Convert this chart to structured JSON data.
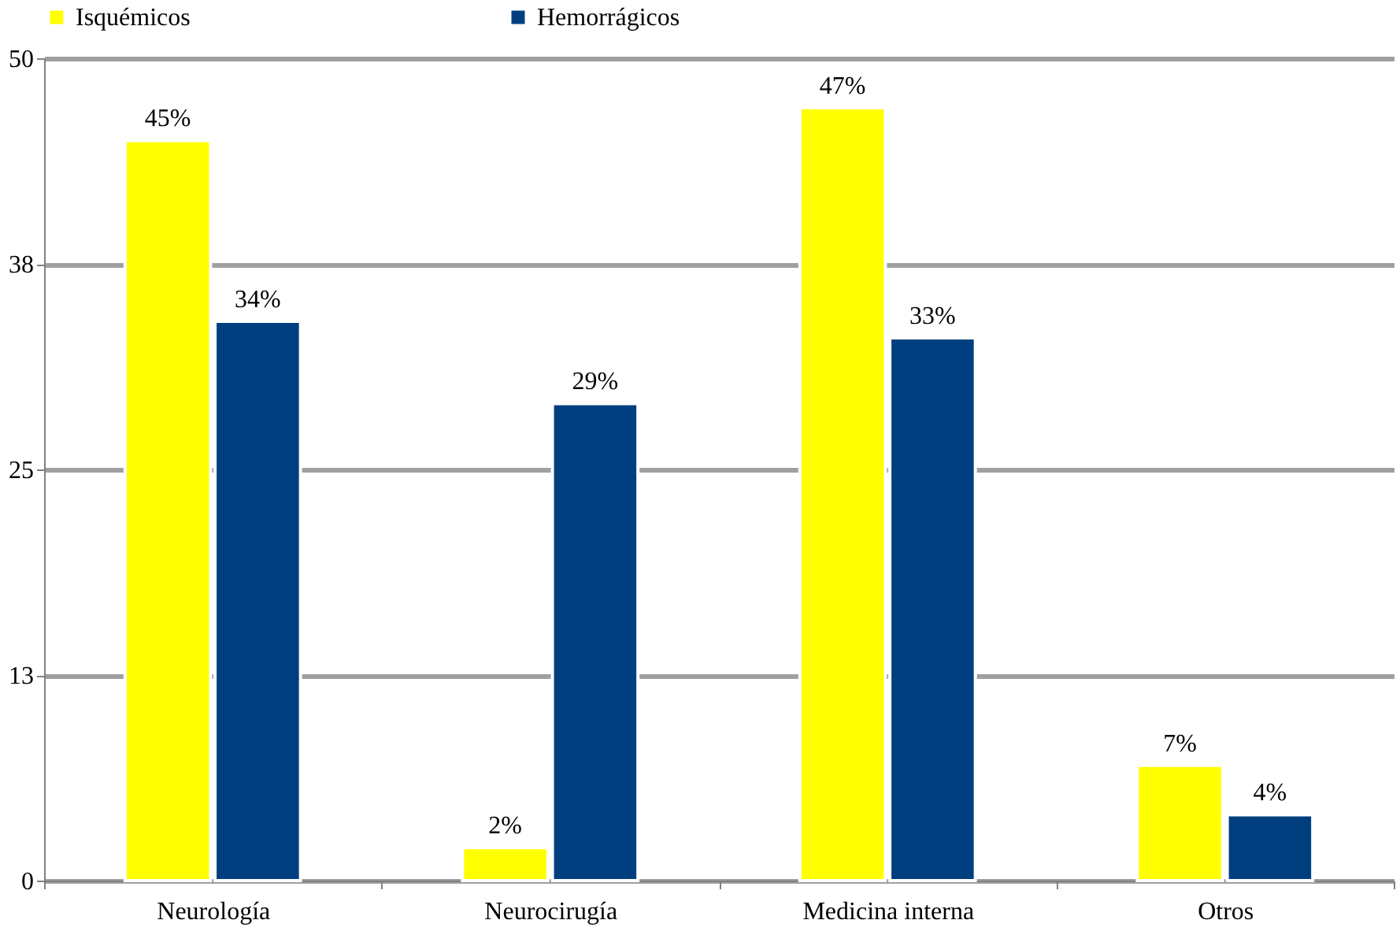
{
  "chart_data": {
    "type": "bar",
    "categories": [
      "Neurología",
      "Neurocirugía",
      "Medicina interna",
      "Otros"
    ],
    "series": [
      {
        "name": "Isquémicos",
        "color": "#ffff00",
        "values": [
          45,
          2,
          47,
          7
        ],
        "value_labels": [
          "45%",
          "2%",
          "47%",
          "7%"
        ]
      },
      {
        "name": "Hemorrágicos",
        "color": "#003f7f",
        "values": [
          34,
          29,
          33,
          4
        ],
        "value_labels": [
          "34%",
          "29%",
          "33%",
          "4%"
        ]
      }
    ],
    "ylim": [
      0,
      50
    ],
    "yticks": [
      0,
      {
        "value": 12.5,
        "label": "13"
      },
      25,
      {
        "value": 37.5,
        "label": "38"
      },
      50
    ],
    "grid": "y",
    "legend": "top"
  }
}
